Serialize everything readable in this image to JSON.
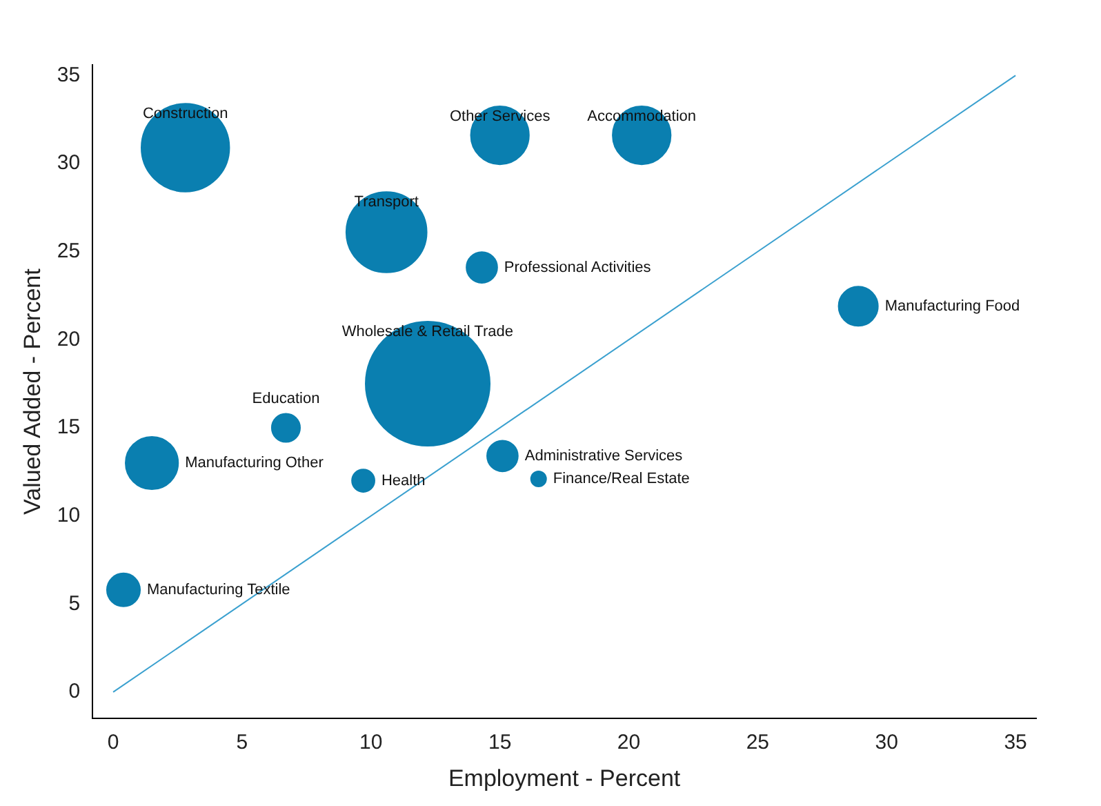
{
  "chart_data": {
    "type": "bubble",
    "xlabel": "Employment - Percent",
    "ylabel": "Valued Added - Percent",
    "xlim": [
      -0.8,
      35.8
    ],
    "ylim": [
      -1.5,
      35.6
    ],
    "xticks": [
      0,
      5,
      10,
      15,
      20,
      25,
      30,
      35
    ],
    "yticks": [
      0,
      5,
      10,
      15,
      20,
      25,
      30,
      35
    ],
    "series": [
      {
        "type": "bubble",
        "color": "#0a7fb0",
        "x": [
          2.8,
          15.0,
          20.5,
          10.6,
          14.3,
          28.9,
          12.2,
          6.7,
          1.5,
          15.1,
          9.7,
          16.5,
          0.4
        ],
        "values": [
          30.9,
          31.6,
          31.6,
          26.1,
          24.1,
          21.9,
          17.5,
          15.0,
          13.0,
          13.4,
          12.0,
          12.1,
          5.8
        ],
        "sizes": [
          0.51,
          0.23,
          0.23,
          0.43,
          0.07,
          0.11,
          1,
          0.06,
          0.19,
          0.07,
          0.04,
          0.02,
          0.08
        ]
      },
      {
        "type": "line",
        "color": "#3aa0cf",
        "x": [
          0,
          35
        ],
        "values": [
          0,
          35
        ]
      }
    ],
    "annotations": [
      {
        "text": "Construction",
        "x": 2.8,
        "y": 30.9
      },
      {
        "text": "Other Services",
        "x": 15.0,
        "y": 31.6
      },
      {
        "text": "Accommodation",
        "x": 20.5,
        "y": 31.6
      },
      {
        "text": "Transport",
        "x": 10.6,
        "y": 26.1
      },
      {
        "text": "Professional Activities",
        "x": 14.3,
        "y": 24.1
      },
      {
        "text": "Manufacturing Food",
        "x": 28.9,
        "y": 21.9
      },
      {
        "text": "Wholesale & Retail Trade",
        "x": 12.2,
        "y": 17.5
      },
      {
        "text": "Education",
        "x": 6.7,
        "y": 15.0
      },
      {
        "text": "Manufacturing Other",
        "x": 1.5,
        "y": 13.0
      },
      {
        "text": "Administrative Services",
        "x": 15.1,
        "y": 13.4
      },
      {
        "text": "Health",
        "x": 9.7,
        "y": 12.0
      },
      {
        "text": "Finance/Real Estate",
        "x": 16.5,
        "y": 12.1
      },
      {
        "text": "Manufacturing Textile",
        "x": 0.4,
        "y": 5.8
      }
    ]
  }
}
